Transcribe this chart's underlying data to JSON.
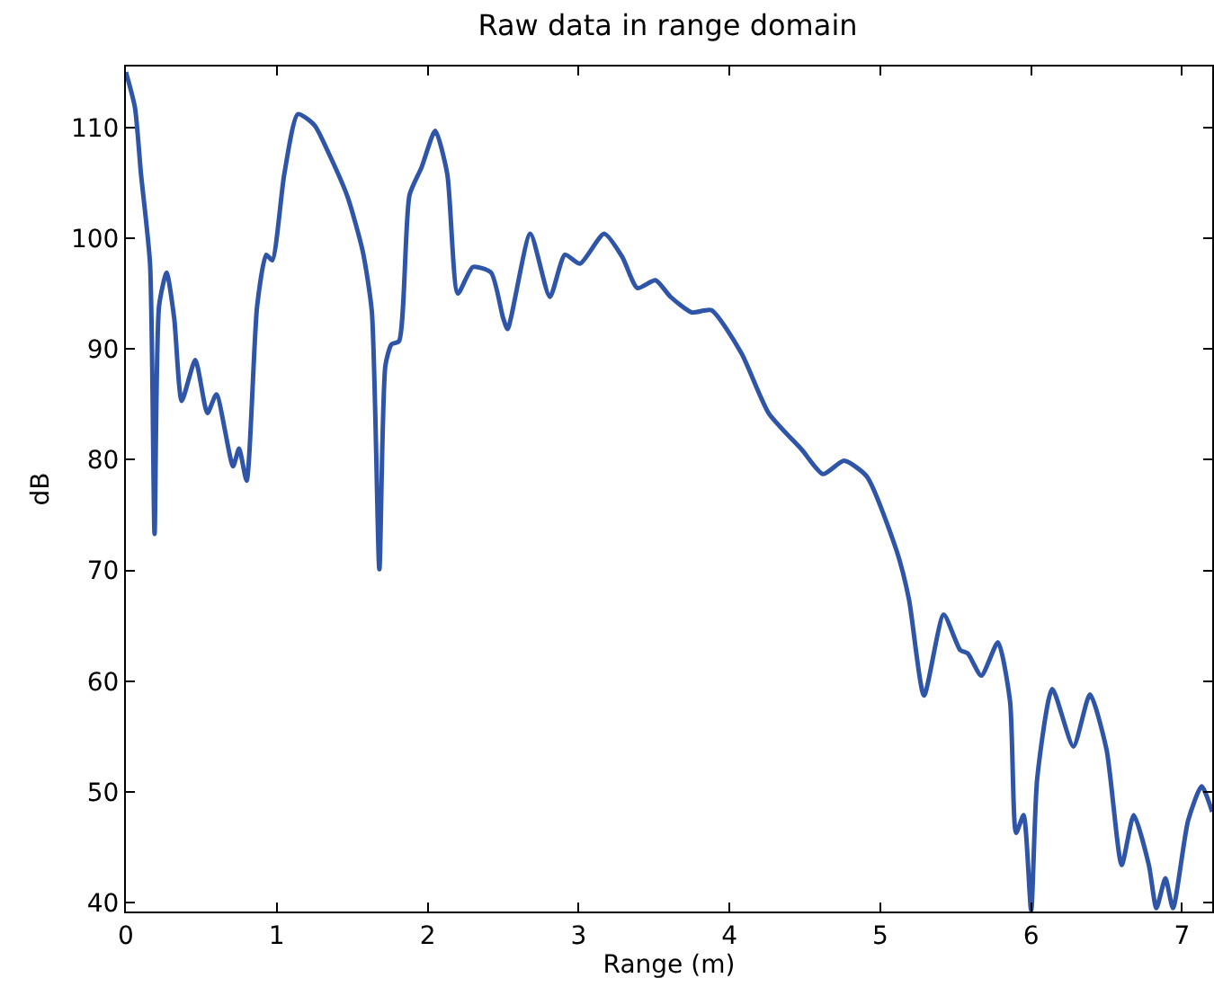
{
  "chart_data": {
    "type": "line",
    "title": "Raw data in range domain",
    "xlabel": "Range (m)",
    "ylabel": "dB",
    "xlim": [
      0,
      7.2
    ],
    "ylim": [
      39.2,
      115.5
    ],
    "xticks": [
      0,
      1,
      2,
      3,
      4,
      5,
      6,
      7
    ],
    "yticks": [
      40,
      50,
      60,
      70,
      80,
      90,
      100,
      110
    ],
    "marker": "none",
    "line_style": "solid",
    "series": [
      {
        "color": "#2f55a8",
        "x": [
          0,
          0.06,
          0.1,
          0.16,
          0.19,
          0.22,
          0.27,
          0.32,
          0.37,
          0.46,
          0.54,
          0.6,
          0.71,
          0.75,
          0.8,
          0.87,
          0.93,
          0.97,
          1.05,
          1.14,
          1.25,
          1.35,
          1.47,
          1.57,
          1.63,
          1.68,
          1.72,
          1.76,
          1.81,
          1.88,
          1.96,
          2.05,
          2.13,
          2.2,
          2.3,
          2.42,
          2.5,
          2.53,
          2.68,
          2.81,
          2.91,
          3.01,
          3.17,
          3.29,
          3.39,
          3.51,
          3.61,
          3.75,
          3.88,
          4.08,
          4.26,
          4.48,
          4.62,
          4.76,
          4.91,
          5.11,
          5.19,
          5.29,
          5.42,
          5.53,
          5.58,
          5.67,
          5.78,
          5.86,
          5.9,
          5.95,
          6.0,
          6.04,
          6.14,
          6.28,
          6.39,
          6.5,
          6.6,
          6.68,
          6.78,
          6.83,
          6.89,
          6.94,
          7.04,
          7.13,
          7.2
        ],
        "values": [
          115,
          111.8,
          105.8,
          97.7,
          73.3,
          93.9,
          96.9,
          92.8,
          85.3,
          89,
          84.2,
          85.9,
          79.4,
          81,
          78.1,
          93.9,
          98.5,
          98,
          105.8,
          111.2,
          110.2,
          107.5,
          103.7,
          98.8,
          93.4,
          70.1,
          88.5,
          90.4,
          90.7,
          103.9,
          106.4,
          109.7,
          105.8,
          95,
          97.4,
          96.9,
          92.8,
          91.8,
          100.4,
          94.7,
          98.5,
          97.7,
          100.4,
          98.3,
          95.5,
          96.2,
          94.7,
          93.3,
          93.5,
          89.6,
          84.2,
          80.9,
          78.7,
          79.9,
          78.5,
          71.7,
          67.4,
          58.7,
          66,
          62.8,
          62.5,
          60.5,
          63.5,
          58.2,
          46.3,
          47.9,
          39.3,
          51.2,
          59.3,
          54.1,
          58.8,
          53.8,
          43.4,
          47.9,
          43.4,
          39.5,
          42.2,
          39.5,
          47.4,
          50.5,
          48.2
        ]
      }
    ]
  }
}
